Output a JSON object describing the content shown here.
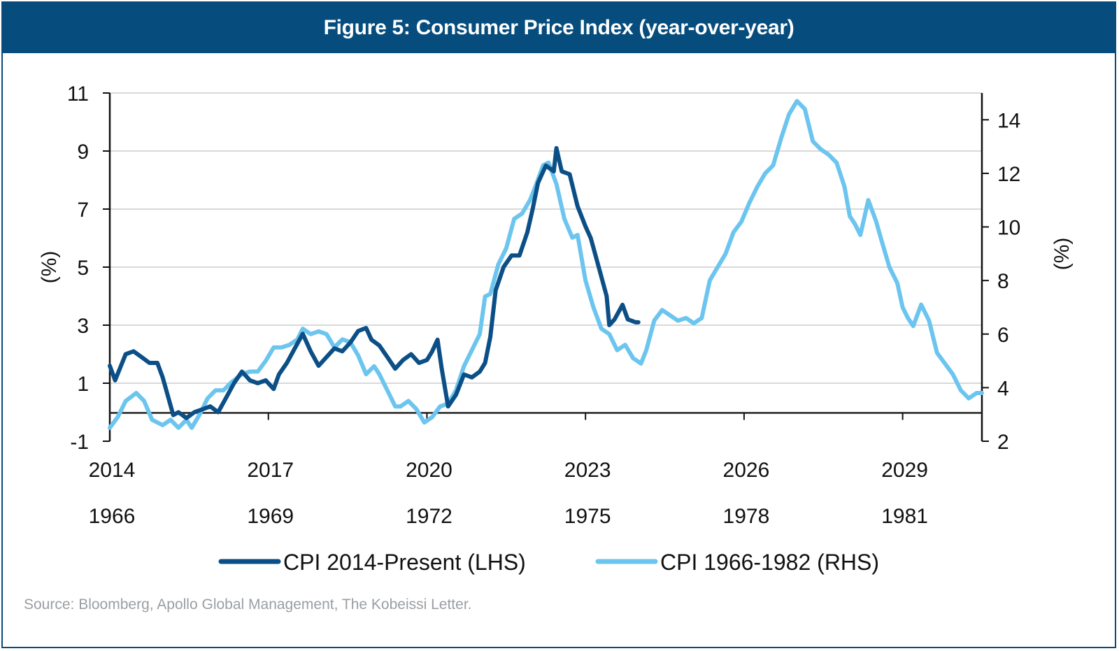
{
  "header": {
    "title": "Figure 5: Consumer Price Index (year-over-year)"
  },
  "source": "Source: Bloomberg, Apollo Global Management, The Kobeissi Letter.",
  "colors": {
    "header_bg": "#064c7d",
    "series_dark": "#0b4f86",
    "series_light": "#6cc5ee",
    "grid": "#d9d9d9",
    "axis": "#111111"
  },
  "chart_data": {
    "type": "line",
    "title": "Figure 5: Consumer Price Index (year-over-year)",
    "xlabel": "",
    "ylabel": "(%)",
    "ylabel_right": "(%)",
    "x_range": [
      2014,
      2030.5
    ],
    "x_ticks_primary": [
      "2014",
      "2017",
      "2020",
      "2023",
      "2026",
      "2029"
    ],
    "x_ticks_secondary": [
      "1966",
      "1969",
      "1972",
      "1975",
      "1978",
      "1981"
    ],
    "ylim": [
      -1,
      11
    ],
    "yticks": [
      "11",
      "9",
      "7",
      "5",
      "3",
      "1",
      "-1"
    ],
    "ylim_right": [
      2,
      15
    ],
    "yticks_right": [
      "14",
      "12",
      "10",
      "8",
      "6",
      "4",
      "2"
    ],
    "grid": true,
    "legend_position": "bottom",
    "series": [
      {
        "name": "CPI 2014-Present (LHS)",
        "axis": "left",
        "x": [
          2014.0,
          2014.1,
          2014.3,
          2014.45,
          2014.6,
          2014.75,
          2014.9,
          2015.0,
          2015.2,
          2015.3,
          2015.45,
          2015.6,
          2015.75,
          2015.9,
          2016.05,
          2016.2,
          2016.35,
          2016.5,
          2016.65,
          2016.8,
          2016.95,
          2017.1,
          2017.2,
          2017.35,
          2017.5,
          2017.65,
          2017.8,
          2017.95,
          2018.1,
          2018.25,
          2018.4,
          2018.55,
          2018.7,
          2018.85,
          2018.95,
          2019.1,
          2019.25,
          2019.4,
          2019.55,
          2019.7,
          2019.85,
          2020.0,
          2020.1,
          2020.2,
          2020.28,
          2020.4,
          2020.55,
          2020.7,
          2020.85,
          2021.0,
          2021.1,
          2021.2,
          2021.3,
          2021.45,
          2021.6,
          2021.75,
          2021.9,
          2022.0,
          2022.1,
          2022.25,
          2022.4,
          2022.45,
          2022.55,
          2022.7,
          2022.85,
          2023.0,
          2023.1,
          2023.25,
          2023.4,
          2023.45,
          2023.55,
          2023.7,
          2023.8,
          2023.95,
          2024.0
        ],
        "values": [
          1.6,
          1.1,
          2.0,
          2.1,
          1.9,
          1.7,
          1.7,
          1.2,
          -0.1,
          0.0,
          -0.2,
          0.0,
          0.1,
          0.2,
          0.0,
          0.5,
          1.0,
          1.4,
          1.1,
          1.0,
          1.1,
          0.8,
          1.3,
          1.7,
          2.2,
          2.7,
          2.1,
          1.6,
          1.9,
          2.2,
          2.1,
          2.4,
          2.8,
          2.9,
          2.5,
          2.3,
          1.9,
          1.5,
          1.8,
          2.0,
          1.7,
          1.8,
          2.1,
          2.5,
          1.5,
          0.2,
          0.6,
          1.3,
          1.2,
          1.4,
          1.7,
          2.6,
          4.2,
          5.0,
          5.4,
          5.4,
          6.2,
          7.0,
          7.9,
          8.5,
          8.3,
          9.1,
          8.3,
          8.2,
          7.1,
          6.4,
          6.0,
          5.0,
          4.0,
          3.0,
          3.2,
          3.7,
          3.2,
          3.1,
          3.1
        ]
      },
      {
        "name": "CPI 1966-1982 (RHS)",
        "axis": "right",
        "x": [
          2014.0,
          2014.15,
          2014.3,
          2014.5,
          2014.65,
          2014.8,
          2015.0,
          2015.15,
          2015.3,
          2015.45,
          2015.55,
          2015.7,
          2015.85,
          2016.0,
          2016.15,
          2016.3,
          2016.5,
          2016.65,
          2016.8,
          2016.95,
          2017.1,
          2017.25,
          2017.4,
          2017.55,
          2017.65,
          2017.8,
          2017.95,
          2018.1,
          2018.25,
          2018.4,
          2018.55,
          2018.7,
          2018.85,
          2019.0,
          2019.1,
          2019.25,
          2019.4,
          2019.5,
          2019.65,
          2019.8,
          2019.95,
          2020.1,
          2020.25,
          2020.4,
          2020.55,
          2020.7,
          2020.85,
          2021.0,
          2021.1,
          2021.2,
          2021.35,
          2021.5,
          2021.65,
          2021.8,
          2021.95,
          2022.05,
          2022.2,
          2022.3,
          2022.45,
          2022.6,
          2022.75,
          2022.85,
          2023.0,
          2023.15,
          2023.3,
          2023.45,
          2023.6,
          2023.75,
          2023.9,
          2024.05,
          2024.15,
          2024.3,
          2024.45,
          2024.6,
          2024.75,
          2024.9,
          2025.05,
          2025.2,
          2025.35,
          2025.5,
          2025.65,
          2025.8,
          2025.95,
          2026.1,
          2026.25,
          2026.4,
          2026.55,
          2026.7,
          2026.85,
          2027.0,
          2027.15,
          2027.3,
          2027.45,
          2027.6,
          2027.75,
          2027.9,
          2028.0,
          2028.1,
          2028.2,
          2028.35,
          2028.5,
          2028.6,
          2028.75,
          2028.9,
          2029.0,
          2029.1,
          2029.2,
          2029.35,
          2029.5,
          2029.65,
          2029.8,
          2029.95,
          2030.1,
          2030.25,
          2030.4,
          2030.5
        ],
        "values": [
          2.5,
          2.9,
          3.5,
          3.8,
          3.5,
          2.8,
          2.6,
          2.8,
          2.5,
          2.8,
          2.5,
          3.0,
          3.6,
          3.9,
          3.9,
          4.2,
          4.5,
          4.6,
          4.6,
          5.0,
          5.5,
          5.5,
          5.6,
          5.8,
          6.2,
          6.0,
          6.1,
          6.0,
          5.5,
          5.8,
          5.7,
          5.2,
          4.5,
          4.8,
          4.5,
          3.9,
          3.3,
          3.3,
          3.5,
          3.2,
          2.7,
          2.9,
          3.3,
          3.4,
          3.9,
          4.8,
          5.4,
          6.0,
          7.4,
          7.5,
          8.6,
          9.2,
          10.3,
          10.5,
          11.0,
          11.5,
          12.3,
          12.4,
          11.6,
          10.3,
          9.6,
          9.7,
          8.0,
          7.0,
          6.2,
          6.0,
          5.4,
          5.6,
          5.1,
          4.9,
          5.4,
          6.5,
          6.9,
          6.7,
          6.5,
          6.6,
          6.4,
          6.6,
          8.0,
          8.5,
          9.0,
          9.8,
          10.2,
          10.9,
          11.5,
          12.0,
          12.3,
          13.3,
          14.2,
          14.7,
          14.4,
          13.2,
          12.9,
          12.7,
          12.4,
          11.5,
          10.4,
          10.1,
          9.7,
          11.0,
          10.2,
          9.5,
          8.5,
          7.9,
          7.0,
          6.6,
          6.3,
          7.1,
          6.5,
          5.3,
          4.9,
          4.5,
          3.9,
          3.6,
          3.8,
          3.8
        ]
      }
    ]
  }
}
